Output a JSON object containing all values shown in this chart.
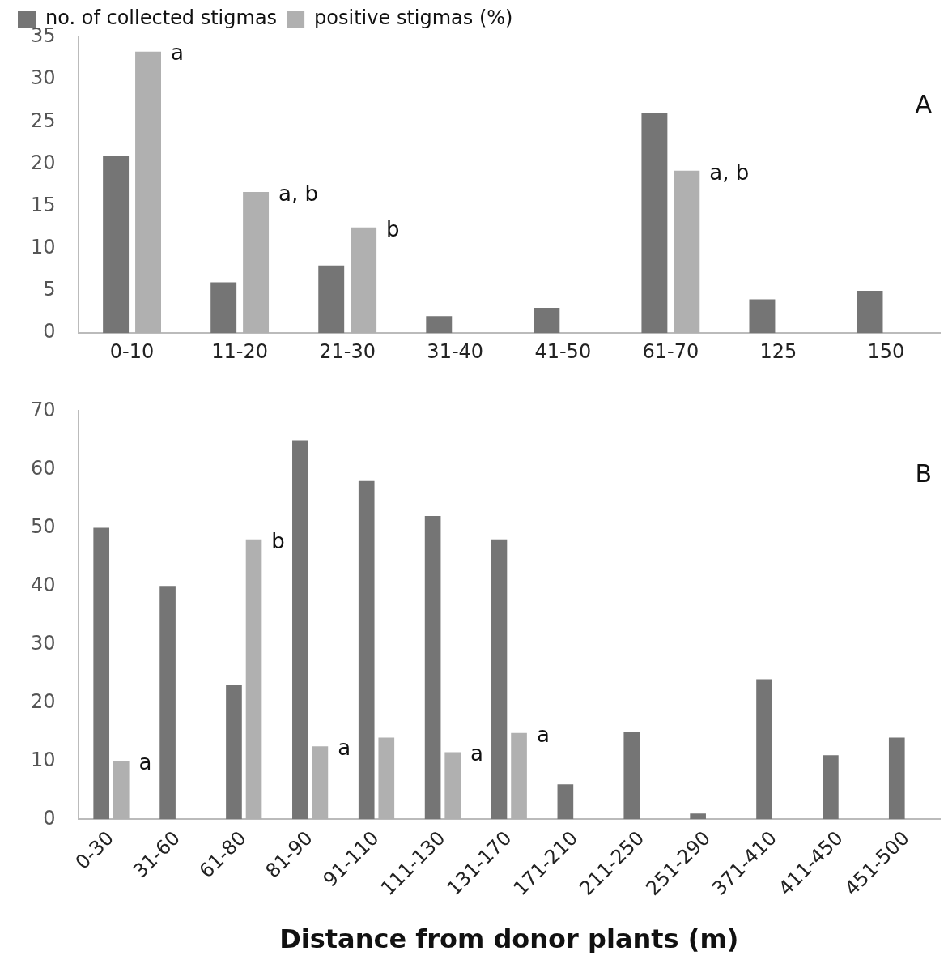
{
  "chart_data": [
    {
      "type": "bar",
      "categories": [
        "0-10",
        "11-20",
        "21-30",
        "31-40",
        "41-50",
        "61-70",
        "125",
        "150"
      ],
      "series": [
        {
          "name": "no. of collected stigmas",
          "color": "#757575",
          "values": [
            21,
            6,
            8,
            2,
            3,
            26,
            4,
            5
          ]
        },
        {
          "name": "positive stigmas (%)",
          "color": "#b0b0b0",
          "values": [
            33.3,
            16.7,
            12.5,
            null,
            null,
            19.2,
            null,
            null
          ]
        }
      ],
      "ylim": [
        0,
        35
      ],
      "yticks": [
        0,
        5,
        10,
        15,
        20,
        25,
        30,
        35
      ],
      "grid": false,
      "legend": "top left",
      "annotations": [
        "A",
        {
          "text": "a",
          "x": "0-10",
          "y": 33.3
        },
        {
          "text": "a, b",
          "x": "11-20",
          "y": 16.7
        },
        {
          "text": "b",
          "x": "21-30",
          "y": 12.5
        },
        {
          "text": "a, b",
          "x": "61-70",
          "y": 19.2
        }
      ]
    },
    {
      "type": "bar",
      "categories": [
        "0-30",
        "31-60",
        "61-80",
        "81-90",
        "91-110",
        "111-130",
        "131-170",
        "171-210",
        "211-250",
        "251-290",
        "371-410",
        "411-450",
        "451-500"
      ],
      "series": [
        {
          "color": "#757575",
          "values": [
            50,
            40,
            23,
            65,
            58,
            52,
            48,
            6,
            15,
            1,
            24,
            11,
            14
          ]
        },
        {
          "color": "#b0b0b0",
          "values": [
            10,
            null,
            48,
            12.5,
            14,
            11.5,
            14.8,
            null,
            null,
            null,
            null,
            null,
            null
          ]
        }
      ],
      "ylim": [
        0,
        70
      ],
      "yticks": [
        0,
        10,
        20,
        30,
        40,
        50,
        60,
        70
      ],
      "grid": false,
      "legend": false,
      "xlabel": "Distance from donor plants (m)",
      "annotations": [
        "B",
        {
          "text": "a",
          "x": "0-30",
          "y": 10
        },
        {
          "text": "b",
          "x": "61-80",
          "y": 48
        },
        {
          "text": "a",
          "x": "81-90",
          "y": 12.5
        },
        {
          "text": "a",
          "x": "111-130",
          "y": 11.5
        },
        {
          "text": "a",
          "x": "131-170",
          "y": 14.8
        }
      ]
    }
  ]
}
